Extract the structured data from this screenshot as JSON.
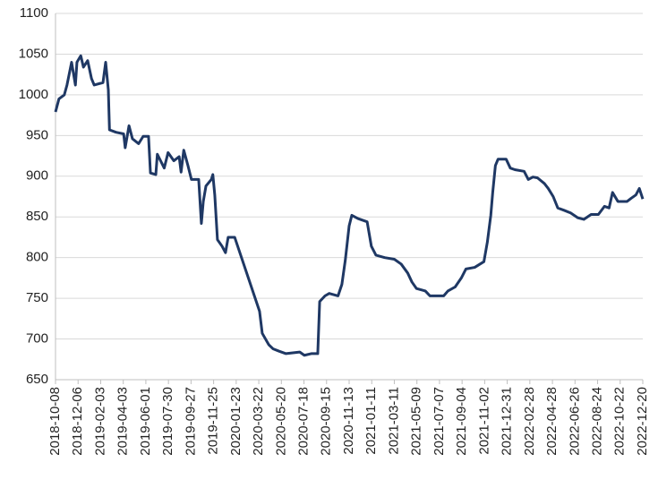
{
  "chart_data": {
    "type": "line",
    "x": [
      "2018-10-08",
      "2018-10-17",
      "2018-10-31",
      "2018-11-07",
      "2018-11-19",
      "2018-11-29",
      "2018-12-03",
      "2018-12-13",
      "2018-12-20",
      "2018-12-31",
      "2019-01-10",
      "2019-01-17",
      "2019-02-09",
      "2019-02-16",
      "2019-02-23",
      "2019-02-26",
      "2019-03-15",
      "2019-04-04",
      "2019-04-08",
      "2019-04-18",
      "2019-04-27",
      "2019-05-13",
      "2019-05-25",
      "2019-06-08",
      "2019-06-13",
      "2019-06-27",
      "2019-07-01",
      "2019-07-19",
      "2019-07-29",
      "2019-08-13",
      "2019-08-27",
      "2019-09-01",
      "2019-09-08",
      "2019-09-19",
      "2019-09-28",
      "2019-10-17",
      "2019-10-24",
      "2019-10-29",
      "2019-11-05",
      "2019-11-19",
      "2019-11-23",
      "2019-11-28",
      "2019-12-05",
      "2019-12-17",
      "2019-12-26",
      "2020-01-02",
      "2020-01-19",
      "2020-03-24",
      "2020-03-31",
      "2020-04-17",
      "2020-04-28",
      "2020-05-14",
      "2020-06-01",
      "2020-07-07",
      "2020-07-19",
      "2020-08-06",
      "2020-08-23",
      "2020-08-28",
      "2020-09-11",
      "2020-09-22",
      "2020-10-15",
      "2020-10-25",
      "2020-11-03",
      "2020-11-13",
      "2020-11-20",
      "2020-12-06",
      "2020-12-30",
      "2021-01-10",
      "2021-01-22",
      "2021-02-14",
      "2021-03-11",
      "2021-03-29",
      "2021-04-15",
      "2021-04-26",
      "2021-05-08",
      "2021-05-31",
      "2021-06-12",
      "2021-07-18",
      "2021-07-29",
      "2021-08-17",
      "2021-09-02",
      "2021-09-14",
      "2021-10-07",
      "2021-10-31",
      "2021-11-09",
      "2021-11-18",
      "2021-11-23",
      "2021-11-30",
      "2021-12-07",
      "2021-12-28",
      "2022-01-08",
      "2022-01-20",
      "2022-02-13",
      "2022-02-24",
      "2022-03-08",
      "2022-03-20",
      "2022-04-07",
      "2022-04-17",
      "2022-04-30",
      "2022-05-12",
      "2022-05-29",
      "2022-06-14",
      "2022-07-03",
      "2022-07-19",
      "2022-08-07",
      "2022-08-26",
      "2022-09-11",
      "2022-09-23",
      "2022-10-02",
      "2022-10-16",
      "2022-11-09",
      "2022-11-20",
      "2022-12-02",
      "2022-12-11",
      "2022-12-20"
    ],
    "series": [
      {
        "color": "#1f3864",
        "values": [
          979,
          995,
          1000,
          1012,
          1040,
          1012,
          1040,
          1048,
          1034,
          1042,
          1020,
          1012,
          1015,
          1040,
          1006,
          957,
          954,
          952,
          935,
          962,
          946,
          940,
          949,
          949,
          904,
          902,
          927,
          910,
          929,
          919,
          924,
          905,
          932,
          913,
          896,
          896,
          842,
          869,
          888,
          896,
          902,
          877,
          822,
          814,
          806,
          825,
          825,
          734,
          707,
          693,
          688,
          685,
          682,
          684,
          680,
          682,
          682,
          746,
          753,
          756,
          753,
          767,
          797,
          839,
          852,
          848,
          844,
          814,
          803,
          800,
          798,
          792,
          781,
          770,
          762,
          759,
          753,
          753,
          759,
          764,
          775,
          786,
          788,
          795,
          819,
          852,
          880,
          913,
          921,
          921,
          910,
          908,
          906,
          896,
          899,
          898,
          891,
          885,
          875,
          861,
          858,
          855,
          849,
          847,
          853,
          853,
          863,
          861,
          880,
          869,
          869,
          873,
          877,
          885,
          872
        ]
      }
    ],
    "xlim": [
      "2018-10-08",
      "2022-12-20"
    ],
    "xticks": [
      "2018-10-08",
      "2018-12-06",
      "2019-02-03",
      "2019-04-03",
      "2019-06-01",
      "2019-07-30",
      "2019-09-27",
      "2019-11-25",
      "2020-01-23",
      "2020-03-22",
      "2020-05-20",
      "2020-07-18",
      "2020-09-15",
      "2020-11-13",
      "2021-01-11",
      "2021-03-11",
      "2021-05-09",
      "2021-07-07",
      "2021-09-04",
      "2021-11-02",
      "2021-12-31",
      "2022-02-28",
      "2022-04-28",
      "2022-06-26",
      "2022-08-24",
      "2022-10-22",
      "2022-12-20"
    ],
    "ylim": [
      650,
      1100
    ],
    "yticks": [
      650,
      700,
      750,
      800,
      850,
      900,
      950,
      1000,
      1050,
      1100
    ],
    "grid": true
  }
}
